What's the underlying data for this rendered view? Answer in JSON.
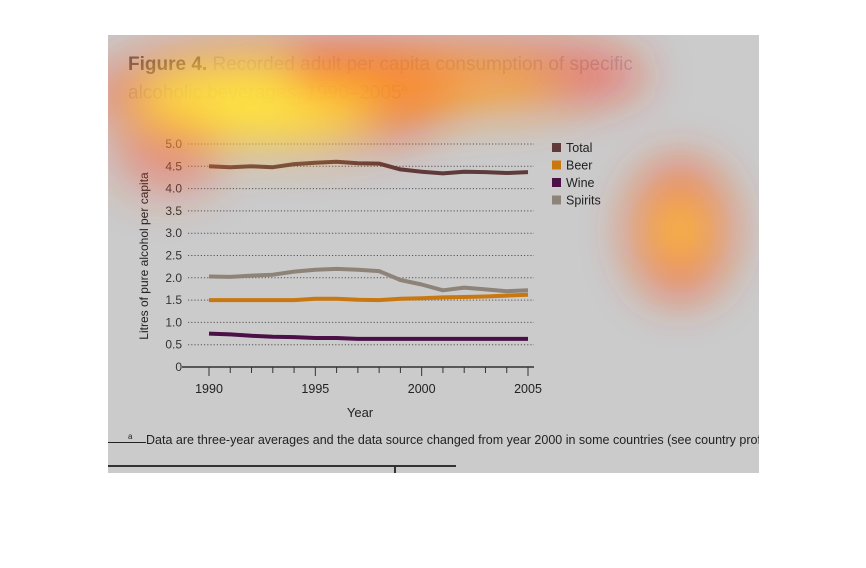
{
  "figure": {
    "label": "Figure 4.",
    "title": "Recorded adult per capita consumption of specific alcoholic beverages, 1990–2005",
    "title_marker": "a"
  },
  "footnote": {
    "marker": "a",
    "text": "Data are three-year averages and the data source changed from year 2000 in some countries (see country profiles)."
  },
  "colors": {
    "total": "#5e3b3b",
    "beer": "#c9780f",
    "wine": "#4a1047",
    "spirits": "#8e8378",
    "grid": "#555555",
    "axis": "#333333",
    "panel": "#cbcbcb"
  },
  "chart_data": {
    "type": "line",
    "xlabel": "Year",
    "ylabel": "Litres of pure alcohol per capita",
    "xlim": [
      1990,
      2005
    ],
    "ylim": [
      0,
      5
    ],
    "x_ticks": [
      1990,
      1995,
      2000,
      2005
    ],
    "y_ticks": [
      "0",
      "0.5",
      "1.0",
      "1.5",
      "2.0",
      "2.5",
      "3.0",
      "3.5",
      "4.0",
      "4.5",
      "5.0"
    ],
    "grid": true,
    "legend_position": "top-right",
    "x": [
      1990,
      1991,
      1992,
      1993,
      1994,
      1995,
      1996,
      1997,
      1998,
      1999,
      2000,
      2001,
      2002,
      2003,
      2004,
      2005
    ],
    "series": [
      {
        "name": "Total",
        "color_key": "total",
        "values": [
          4.5,
          4.48,
          4.5,
          4.48,
          4.55,
          4.58,
          4.6,
          4.57,
          4.56,
          4.43,
          4.38,
          4.34,
          4.38,
          4.37,
          4.35,
          4.37
        ]
      },
      {
        "name": "Beer",
        "color_key": "beer",
        "values": [
          1.5,
          1.5,
          1.5,
          1.5,
          1.5,
          1.53,
          1.53,
          1.51,
          1.5,
          1.53,
          1.54,
          1.56,
          1.57,
          1.58,
          1.6,
          1.62
        ]
      },
      {
        "name": "Wine",
        "color_key": "wine",
        "values": [
          0.75,
          0.73,
          0.7,
          0.68,
          0.67,
          0.65,
          0.65,
          0.63,
          0.63,
          0.63,
          0.63,
          0.63,
          0.63,
          0.63,
          0.63,
          0.63
        ]
      },
      {
        "name": "Spirits",
        "color_key": "spirits",
        "values": [
          2.03,
          2.02,
          2.05,
          2.07,
          2.14,
          2.18,
          2.2,
          2.18,
          2.15,
          1.95,
          1.85,
          1.72,
          1.78,
          1.74,
          1.7,
          1.72
        ]
      }
    ]
  }
}
